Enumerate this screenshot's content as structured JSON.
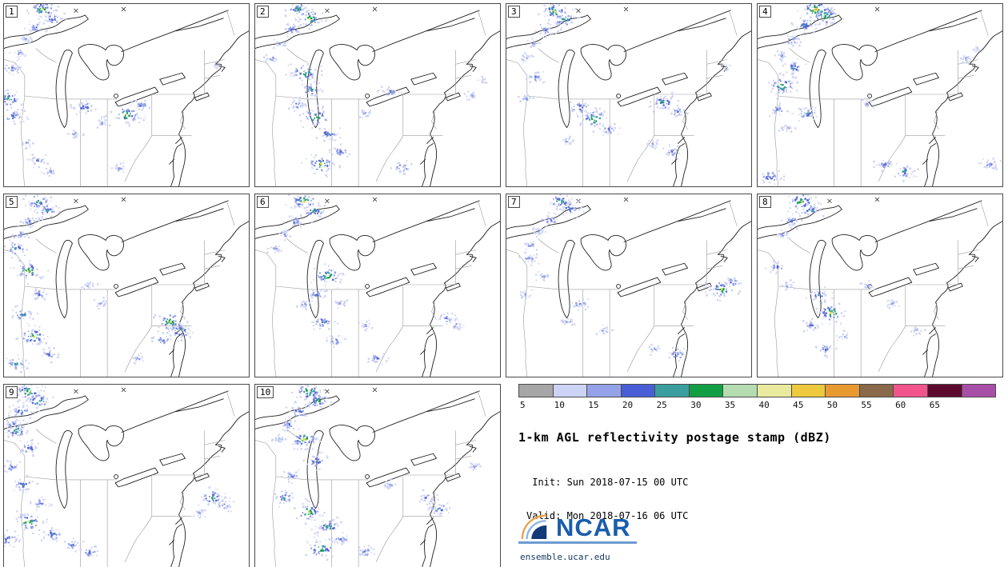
{
  "legend": {
    "title": "1-km AGL reflectivity postage stamp (dBZ)",
    "init_line": " Init: Sun 2018-07-15 00 UTC",
    "valid_line": "Valid: Mon 2018-07-16 06 UTC",
    "site": "ensemble.ucar.edu",
    "logo_text": "NCAR"
  },
  "colorbar": {
    "units": "dBZ",
    "ticks": [
      "5",
      "10",
      "15",
      "20",
      "25",
      "30",
      "35",
      "40",
      "45",
      "50",
      "55",
      "60",
      "65"
    ],
    "colors": [
      "#a6a6a6",
      "#cdd3f5",
      "#93a2e9",
      "#4a5fd6",
      "#3a9e9e",
      "#129e45",
      "#b4dcb0",
      "#eaea9e",
      "#eec93e",
      "#e89a30",
      "#8a6a4a",
      "#f2558c",
      "#5c0b2e",
      "#a84fa8"
    ]
  },
  "map_colors": {
    "coast": "#1f1f1f",
    "border": "#9a9a9a",
    "reflectivity_levels": [
      "#cdd3f5",
      "#93a2e9",
      "#5767d8",
      "#3a9e9e",
      "#129e45",
      "#e6d84a",
      "#eda432"
    ]
  },
  "panels": [
    {
      "label": "1",
      "clusters": [
        [
          16,
          3,
          5
        ],
        [
          20,
          8,
          3
        ],
        [
          13,
          13,
          2
        ],
        [
          9,
          19,
          1
        ],
        [
          6,
          27,
          1
        ],
        [
          4,
          35,
          2
        ],
        [
          2,
          52,
          4
        ],
        [
          4,
          62,
          3
        ],
        [
          9,
          76,
          1
        ],
        [
          14,
          86,
          2
        ],
        [
          19,
          92,
          1
        ],
        [
          33,
          57,
          3
        ],
        [
          40,
          65,
          1
        ],
        [
          29,
          71,
          1
        ],
        [
          50,
          61,
          5
        ],
        [
          56,
          56,
          2
        ],
        [
          87,
          34,
          0
        ],
        [
          47,
          90,
          1
        ]
      ]
    },
    {
      "label": "2",
      "clusters": [
        [
          18,
          3,
          4
        ],
        [
          22,
          8,
          5
        ],
        [
          15,
          14,
          2
        ],
        [
          10,
          22,
          1
        ],
        [
          7,
          30,
          1
        ],
        [
          20,
          38,
          5
        ],
        [
          23,
          47,
          3
        ],
        [
          17,
          55,
          2
        ],
        [
          25,
          62,
          5
        ],
        [
          30,
          71,
          3
        ],
        [
          35,
          81,
          2
        ],
        [
          27,
          88,
          5
        ],
        [
          45,
          60,
          1
        ],
        [
          55,
          48,
          2
        ],
        [
          88,
          50,
          1
        ],
        [
          93,
          42,
          0
        ],
        [
          60,
          90,
          2
        ]
      ]
    },
    {
      "label": "3",
      "clusters": [
        [
          20,
          4,
          5
        ],
        [
          24,
          9,
          4
        ],
        [
          16,
          15,
          2
        ],
        [
          11,
          22,
          1
        ],
        [
          8,
          30,
          1
        ],
        [
          12,
          40,
          2
        ],
        [
          8,
          52,
          1
        ],
        [
          30,
          57,
          3
        ],
        [
          36,
          63,
          5
        ],
        [
          42,
          69,
          2
        ],
        [
          25,
          75,
          1
        ],
        [
          64,
          54,
          4
        ],
        [
          70,
          59,
          2
        ],
        [
          60,
          77,
          1
        ],
        [
          68,
          81,
          2
        ],
        [
          90,
          35,
          0
        ]
      ]
    },
    {
      "label": "4",
      "clusters": [
        [
          24,
          3,
          6
        ],
        [
          28,
          7,
          5
        ],
        [
          19,
          12,
          3
        ],
        [
          14,
          20,
          2
        ],
        [
          10,
          28,
          1
        ],
        [
          15,
          35,
          3
        ],
        [
          10,
          45,
          5
        ],
        [
          8,
          58,
          2
        ],
        [
          12,
          68,
          1
        ],
        [
          20,
          60,
          3
        ],
        [
          45,
          55,
          1
        ],
        [
          52,
          88,
          2
        ],
        [
          60,
          92,
          3
        ],
        [
          85,
          30,
          1
        ],
        [
          90,
          25,
          0
        ],
        [
          95,
          88,
          2
        ],
        [
          5,
          95,
          3
        ]
      ]
    },
    {
      "label": "5",
      "clusters": [
        [
          14,
          4,
          4
        ],
        [
          18,
          9,
          3
        ],
        [
          10,
          15,
          2
        ],
        [
          7,
          22,
          1
        ],
        [
          5,
          30,
          3
        ],
        [
          10,
          42,
          5
        ],
        [
          14,
          55,
          2
        ],
        [
          8,
          66,
          3
        ],
        [
          12,
          78,
          5
        ],
        [
          18,
          88,
          2
        ],
        [
          5,
          93,
          3
        ],
        [
          40,
          60,
          1
        ],
        [
          68,
          70,
          5
        ],
        [
          72,
          75,
          4
        ],
        [
          65,
          80,
          2
        ],
        [
          55,
          90,
          1
        ],
        [
          35,
          50,
          1
        ]
      ]
    },
    {
      "label": "6",
      "clusters": [
        [
          20,
          4,
          5
        ],
        [
          24,
          9,
          4
        ],
        [
          16,
          15,
          2
        ],
        [
          12,
          22,
          1
        ],
        [
          8,
          30,
          1
        ],
        [
          30,
          45,
          5
        ],
        [
          25,
          55,
          2
        ],
        [
          35,
          60,
          1
        ],
        [
          28,
          70,
          3
        ],
        [
          33,
          80,
          2
        ],
        [
          45,
          72,
          1
        ],
        [
          78,
          68,
          2
        ],
        [
          82,
          72,
          1
        ],
        [
          50,
          90,
          2
        ],
        [
          20,
          60,
          1
        ]
      ]
    },
    {
      "label": "7",
      "clusters": [
        [
          22,
          4,
          4
        ],
        [
          26,
          8,
          3
        ],
        [
          18,
          14,
          2
        ],
        [
          13,
          20,
          1
        ],
        [
          10,
          28,
          1
        ],
        [
          10,
          35,
          2
        ],
        [
          15,
          45,
          1
        ],
        [
          8,
          55,
          1
        ],
        [
          30,
          60,
          2
        ],
        [
          25,
          70,
          1
        ],
        [
          88,
          52,
          5
        ],
        [
          92,
          48,
          2
        ],
        [
          60,
          85,
          1
        ],
        [
          70,
          88,
          2
        ],
        [
          40,
          75,
          1
        ]
      ]
    },
    {
      "label": "8",
      "clusters": [
        [
          18,
          4,
          5
        ],
        [
          22,
          9,
          3
        ],
        [
          14,
          15,
          2
        ],
        [
          10,
          22,
          1
        ],
        [
          8,
          40,
          2
        ],
        [
          12,
          50,
          1
        ],
        [
          25,
          55,
          3
        ],
        [
          30,
          65,
          5
        ],
        [
          22,
          72,
          2
        ],
        [
          35,
          78,
          1
        ],
        [
          28,
          85,
          2
        ],
        [
          55,
          60,
          1
        ],
        [
          65,
          75,
          1
        ],
        [
          45,
          50,
          1
        ]
      ]
    },
    {
      "label": "9",
      "clusters": [
        [
          10,
          4,
          5
        ],
        [
          14,
          9,
          4
        ],
        [
          7,
          15,
          3
        ],
        [
          4,
          22,
          2
        ],
        [
          5,
          25,
          4
        ],
        [
          10,
          35,
          3
        ],
        [
          3,
          45,
          2
        ],
        [
          8,
          55,
          3
        ],
        [
          15,
          65,
          2
        ],
        [
          10,
          75,
          5
        ],
        [
          20,
          82,
          3
        ],
        [
          28,
          88,
          2
        ],
        [
          85,
          62,
          4
        ],
        [
          90,
          66,
          2
        ],
        [
          80,
          70,
          1
        ],
        [
          35,
          92,
          2
        ],
        [
          2,
          85,
          3
        ]
      ]
    },
    {
      "label": "10",
      "clusters": [
        [
          22,
          4,
          5
        ],
        [
          26,
          9,
          4
        ],
        [
          18,
          15,
          3
        ],
        [
          14,
          22,
          2
        ],
        [
          10,
          30,
          1
        ],
        [
          20,
          30,
          5
        ],
        [
          25,
          42,
          3
        ],
        [
          15,
          50,
          2
        ],
        [
          12,
          62,
          3
        ],
        [
          22,
          70,
          5
        ],
        [
          30,
          78,
          4
        ],
        [
          27,
          90,
          5
        ],
        [
          35,
          85,
          2
        ],
        [
          70,
          62,
          2
        ],
        [
          75,
          68,
          3
        ],
        [
          55,
          55,
          1
        ],
        [
          90,
          45,
          1
        ],
        [
          45,
          92,
          2
        ]
      ]
    }
  ]
}
